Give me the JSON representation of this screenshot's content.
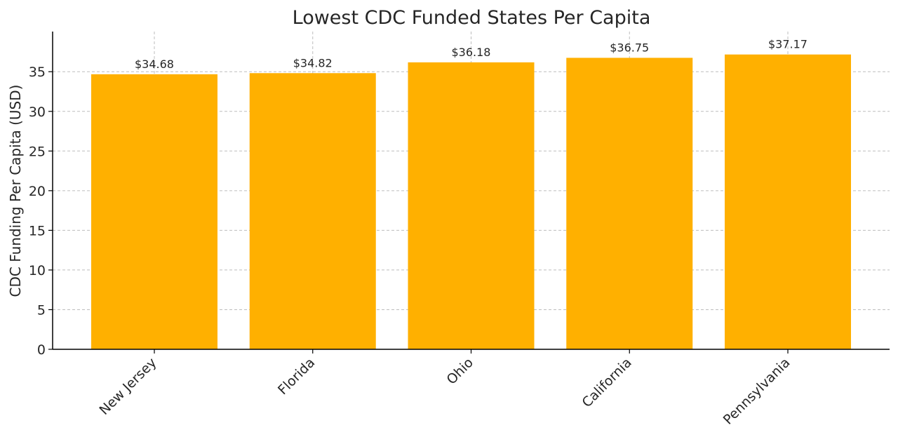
{
  "chart_data": {
    "type": "bar",
    "title": "Lowest CDC Funded States Per Capita",
    "xlabel": "",
    "ylabel": "CDC Funding Per Capita (USD)",
    "categories": [
      "New Jersey",
      "Florida",
      "Ohio",
      "California",
      "Pennsylvania"
    ],
    "values": [
      34.68,
      34.82,
      36.18,
      36.75,
      37.17
    ],
    "data_labels": [
      "$34.68",
      "$34.82",
      "$36.18",
      "$36.75",
      "$37.17"
    ],
    "ylim": [
      0,
      39
    ],
    "yticks": [
      0,
      5,
      10,
      15,
      20,
      25,
      30,
      35
    ],
    "grid": true,
    "bar_color": "#FFB000"
  }
}
